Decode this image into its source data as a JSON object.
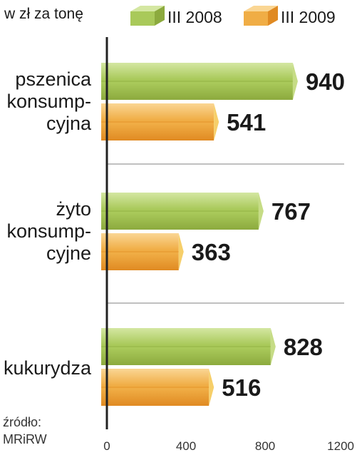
{
  "unit_label": "w zł za tonę",
  "source_label": "źródło:",
  "source_name": "MRiRW",
  "chart_data": {
    "type": "bar",
    "orientation": "horizontal",
    "categories": [
      [
        "pszenica",
        "konsump-",
        "cyjna"
      ],
      [
        "żyto",
        "konsump-",
        "cyjne"
      ],
      [
        "kukurydza"
      ]
    ],
    "series": [
      {
        "name": "III 2008",
        "values": [
          940,
          767,
          828
        ],
        "color": "#a9c95a",
        "top_color": "#d4e7a2",
        "side_color": "#c6dc86",
        "bottom_color": "#8caa3e"
      },
      {
        "name": "III 2009",
        "values": [
          541,
          363,
          516
        ],
        "color": "#f0ad45",
        "top_color": "#fad694",
        "side_color": "#f6cf6a",
        "bottom_color": "#e08a22"
      }
    ],
    "value_labels": [
      [
        "940",
        "767",
        "828"
      ],
      [
        "541",
        "363",
        "516"
      ]
    ],
    "xlim": [
      0,
      1200
    ],
    "xticks": [
      "0",
      "400",
      "800",
      "1200"
    ],
    "xtick_values": [
      0,
      400,
      800,
      1200
    ],
    "legend_position": "top",
    "grid": false
  }
}
